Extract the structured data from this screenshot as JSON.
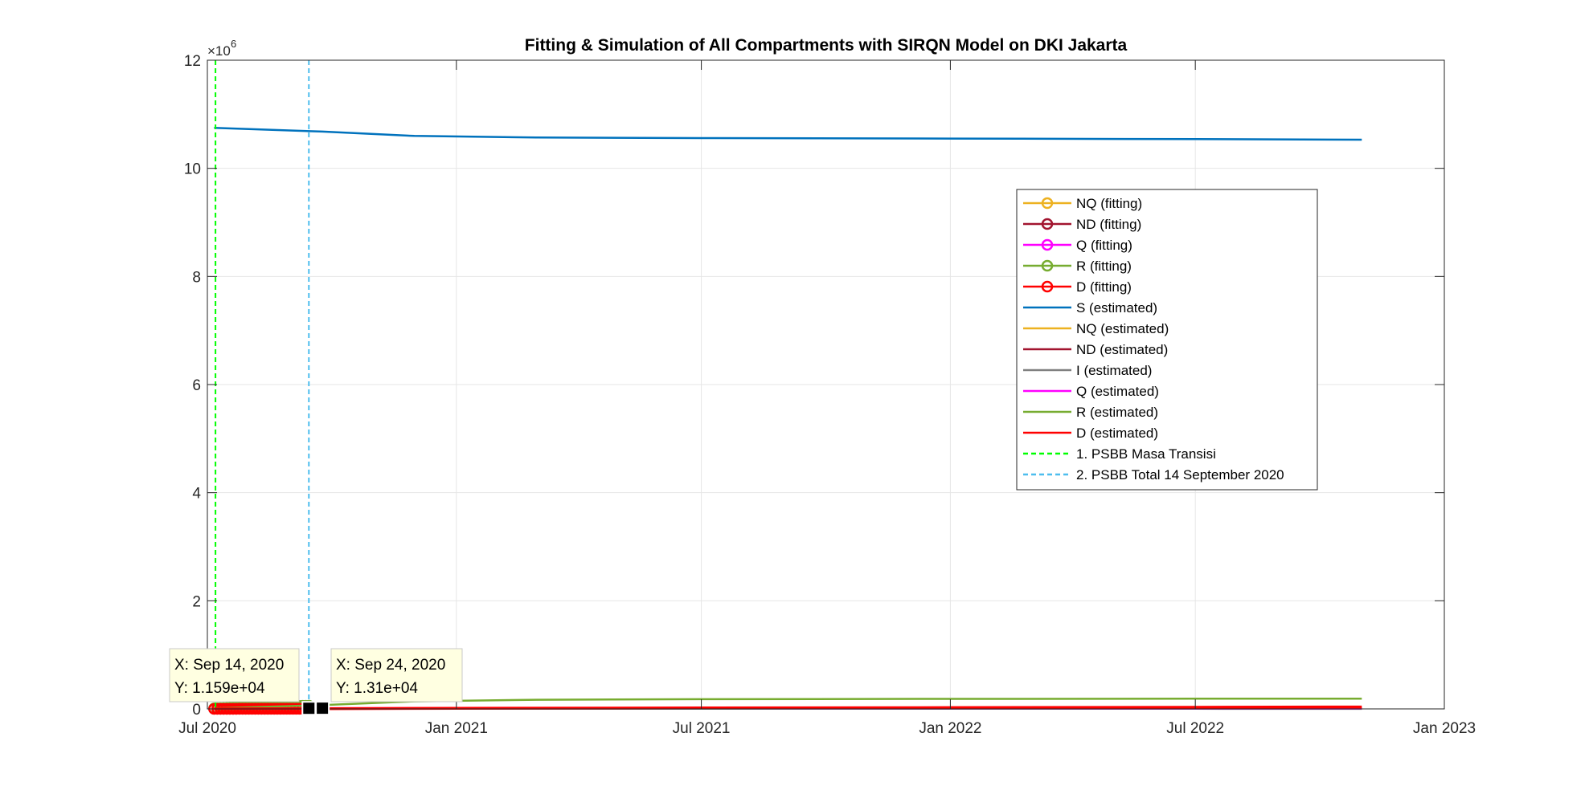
{
  "chart_data": {
    "type": "line",
    "title": "Fitting & Simulation of All Compartments with SIRQN Model on DKI Jakarta",
    "xlabel": "",
    "ylabel": "",
    "x_axis": {
      "type": "date",
      "ticks": [
        "2020-07-01",
        "2021-01-01",
        "2021-07-01",
        "2022-01-01",
        "2022-07-01",
        "2023-01-01"
      ],
      "tick_labels": [
        "Jul 2020",
        "Jan 2021",
        "Jul 2021",
        "Jan 2022",
        "Jul 2022",
        "Jan 2023"
      ],
      "range": [
        "2020-07-01",
        "2023-01-01"
      ]
    },
    "y_axis": {
      "range": [
        0,
        12000000
      ],
      "ticks": [
        0,
        2000000,
        4000000,
        6000000,
        8000000,
        10000000,
        12000000
      ],
      "tick_labels": [
        "0",
        "2",
        "4",
        "6",
        "8",
        "10",
        "12"
      ],
      "exponent_label": "×10",
      "exponent_power": "6"
    },
    "grid": true,
    "legend_placement": "center-right",
    "series": [
      {
        "name": "NQ (fitting)",
        "style": "marker",
        "color": "#EDB120",
        "x": [
          "2020-07-06",
          "2020-07-20",
          "2020-08-03",
          "2020-08-17",
          "2020-08-31",
          "2020-09-14"
        ],
        "y": [
          3000,
          4000,
          5000,
          6000,
          7000,
          8000
        ]
      },
      {
        "name": "ND (fitting)",
        "style": "marker",
        "color": "#A2142F",
        "x": [
          "2020-07-06",
          "2020-07-20",
          "2020-08-03",
          "2020-08-17",
          "2020-08-31",
          "2020-09-14"
        ],
        "y": [
          1000,
          1500,
          2000,
          2500,
          3000,
          3500
        ]
      },
      {
        "name": "Q (fitting)",
        "style": "marker",
        "color": "#FF00FF",
        "x": [
          "2020-07-06",
          "2020-07-20",
          "2020-08-03",
          "2020-08-17",
          "2020-08-31",
          "2020-09-14"
        ],
        "y": [
          5000,
          6000,
          7000,
          8000,
          9000,
          10000
        ]
      },
      {
        "name": "R (fitting)",
        "style": "marker",
        "color": "#77AC30",
        "x": [
          "2020-07-06",
          "2020-07-20",
          "2020-08-03",
          "2020-08-17",
          "2020-08-31",
          "2020-09-14"
        ],
        "y": [
          10000,
          20000,
          30000,
          40000,
          50000,
          60000
        ]
      },
      {
        "name": "D (fitting)",
        "style": "marker",
        "color": "#FF0000",
        "x": [
          "2020-07-06",
          "2020-07-20",
          "2020-08-03",
          "2020-08-17",
          "2020-08-31",
          "2020-09-14"
        ],
        "y": [
          800,
          900,
          1000,
          1100,
          1200,
          1300
        ]
      },
      {
        "name": "S (estimated)",
        "style": "line",
        "color": "#0072BD",
        "x": [
          "2020-07-06",
          "2020-09-24",
          "2020-12-01",
          "2021-03-01",
          "2021-07-01",
          "2022-01-01",
          "2022-07-01",
          "2022-11-01"
        ],
        "y": [
          10750000,
          10680000,
          10600000,
          10570000,
          10560000,
          10550000,
          10540000,
          10530000
        ]
      },
      {
        "name": "NQ (estimated)",
        "style": "line",
        "color": "#EDB120",
        "x": [
          "2020-07-06",
          "2020-09-24",
          "2021-01-01",
          "2021-07-01",
          "2022-01-01",
          "2022-07-01",
          "2022-11-01"
        ],
        "y": [
          3000,
          9000,
          12000,
          14000,
          15000,
          15500,
          16000
        ]
      },
      {
        "name": "ND (estimated)",
        "style": "line",
        "color": "#A2142F",
        "x": [
          "2020-07-06",
          "2020-09-24",
          "2021-01-01",
          "2021-07-01",
          "2022-01-01",
          "2022-07-01",
          "2022-11-01"
        ],
        "y": [
          1000,
          4000,
          6000,
          7000,
          8000,
          8500,
          9000
        ]
      },
      {
        "name": "I (estimated)",
        "style": "line",
        "color": "#808080",
        "x": [
          "2020-07-06",
          "2020-09-24",
          "2021-01-01",
          "2021-07-01",
          "2022-01-01",
          "2022-07-01",
          "2022-11-01"
        ],
        "y": [
          2000,
          6000,
          5000,
          4000,
          3000,
          2500,
          2000
        ]
      },
      {
        "name": "Q (estimated)",
        "style": "line",
        "color": "#FF00FF",
        "x": [
          "2020-07-06",
          "2020-09-24",
          "2021-01-01",
          "2021-07-01",
          "2022-01-01",
          "2022-07-01",
          "2022-11-01"
        ],
        "y": [
          5000,
          13100,
          12000,
          10000,
          9000,
          8000,
          7000
        ]
      },
      {
        "name": "R (estimated)",
        "style": "line",
        "color": "#77AC30",
        "x": [
          "2020-07-06",
          "2020-09-24",
          "2020-12-01",
          "2021-03-01",
          "2021-07-01",
          "2022-01-01",
          "2022-07-01",
          "2022-11-01"
        ],
        "y": [
          10000,
          70000,
          140000,
          170000,
          180000,
          185000,
          188000,
          190000
        ]
      },
      {
        "name": "D (estimated)",
        "style": "line",
        "color": "#FF0000",
        "x": [
          "2020-07-06",
          "2020-09-24",
          "2021-01-01",
          "2021-07-01",
          "2022-01-01",
          "2022-07-01",
          "2022-11-01"
        ],
        "y": [
          800,
          5000,
          12000,
          18000,
          24000,
          30000,
          35000
        ]
      }
    ],
    "vertical_lines": [
      {
        "name": "1. PSBB Masa Transisi",
        "x": "2020-07-07",
        "color": "#00FF00"
      },
      {
        "name": "2. PSBB Total 14 September 2020",
        "x": "2020-09-14",
        "color": "#4DBEEE"
      }
    ],
    "datatips": [
      {
        "x": "2020-09-14",
        "y": 11590,
        "x_text": "X: Sep 14, 2020",
        "y_text": "Y: 1.159e+04"
      },
      {
        "x": "2020-09-24",
        "y": 13100,
        "x_text": "X: Sep 24, 2020",
        "y_text": "Y: 1.31e+04"
      }
    ]
  }
}
